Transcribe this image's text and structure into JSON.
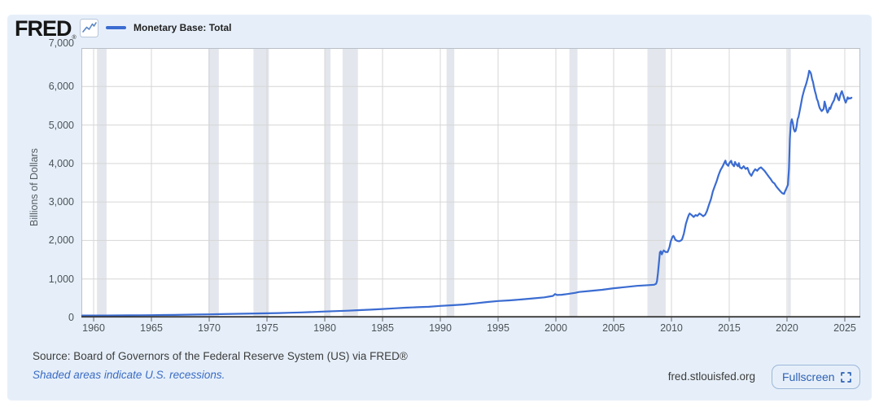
{
  "header": {
    "logo": "FRED",
    "logo_registered": "®",
    "legend": {
      "label": "Monetary Base: Total"
    }
  },
  "colors": {
    "series_blue": "#3b6cd1",
    "recession_band": "#e3e6ec",
    "grid": "#d6d6d6",
    "plot_border": "#b9bfc7",
    "axis_line": "#3a3a3a",
    "tick_color": "#666666",
    "widget_bg": "#e6eff9",
    "link_blue": "#3a6bc4",
    "button_blue": "#2e62b5"
  },
  "footer": {
    "source": "Source: Board of Governors of the Federal Reserve System (US) via FRED®",
    "note": "Shaded areas indicate U.S. recessions.",
    "site": "fred.stlouisfed.org",
    "fullscreen_label": "Fullscreen"
  },
  "chart_data": {
    "type": "line",
    "title": "Monetary Base: Total",
    "ylabel": "Billions of Dollars",
    "xlabel": "",
    "xlim": [
      1958.94,
      2026.34
    ],
    "ylim": [
      0,
      7000
    ],
    "grid": true,
    "legend_position": "top-left",
    "x_ticks": [
      {
        "value": 1960,
        "label": "1960"
      },
      {
        "value": 1965,
        "label": "1965"
      },
      {
        "value": 1970,
        "label": "1970"
      },
      {
        "value": 1975,
        "label": "1975"
      },
      {
        "value": 1980,
        "label": "1980"
      },
      {
        "value": 1985,
        "label": "1985"
      },
      {
        "value": 1990,
        "label": "1990"
      },
      {
        "value": 1995,
        "label": "1995"
      },
      {
        "value": 2000,
        "label": "2000"
      },
      {
        "value": 2005,
        "label": "2005"
      },
      {
        "value": 2010,
        "label": "2010"
      },
      {
        "value": 2015,
        "label": "2015"
      },
      {
        "value": 2020,
        "label": "2020"
      },
      {
        "value": 2025,
        "label": "2025"
      }
    ],
    "y_ticks": [
      {
        "value": 0,
        "label": "0"
      },
      {
        "value": 1000,
        "label": "1,000"
      },
      {
        "value": 2000,
        "label": "2,000"
      },
      {
        "value": 3000,
        "label": "3,000"
      },
      {
        "value": 4000,
        "label": "4,000"
      },
      {
        "value": 5000,
        "label": "5,000"
      },
      {
        "value": 6000,
        "label": "6,000"
      },
      {
        "value": 7000,
        "label": "7,000"
      }
    ],
    "recessions": [
      [
        1960.29,
        1961.12
      ],
      [
        1969.92,
        1970.83
      ],
      [
        1973.83,
        1975.17
      ],
      [
        1980.0,
        1980.5
      ],
      [
        1981.54,
        1982.87
      ],
      [
        1990.54,
        1991.21
      ],
      [
        2001.17,
        2001.87
      ],
      [
        2007.92,
        2009.5
      ],
      [
        2020.08,
        2020.33
      ]
    ],
    "series": [
      {
        "name": "Monetary Base: Total",
        "color": "#3b6cd1",
        "units": "Billions of Dollars",
        "points": [
          [
            1959.0,
            51
          ],
          [
            1960,
            50
          ],
          [
            1961,
            50
          ],
          [
            1962,
            52
          ],
          [
            1963,
            54
          ],
          [
            1964,
            57
          ],
          [
            1965,
            60
          ],
          [
            1966,
            63
          ],
          [
            1967,
            66
          ],
          [
            1968,
            71
          ],
          [
            1969,
            76
          ],
          [
            1970,
            81
          ],
          [
            1971,
            87
          ],
          [
            1972,
            92
          ],
          [
            1973,
            97
          ],
          [
            1974,
            103
          ],
          [
            1975,
            108
          ],
          [
            1976,
            115
          ],
          [
            1977,
            123
          ],
          [
            1978,
            132
          ],
          [
            1979,
            142
          ],
          [
            1980,
            155
          ],
          [
            1981,
            165
          ],
          [
            1982,
            175
          ],
          [
            1983,
            191
          ],
          [
            1984,
            204
          ],
          [
            1985,
            220
          ],
          [
            1986,
            237
          ],
          [
            1987,
            253
          ],
          [
            1988,
            267
          ],
          [
            1989,
            277
          ],
          [
            1990,
            300
          ],
          [
            1991,
            317
          ],
          [
            1992,
            337
          ],
          [
            1993,
            365
          ],
          [
            1994,
            400
          ],
          [
            1995,
            427
          ],
          [
            1996,
            445
          ],
          [
            1997,
            467
          ],
          [
            1998,
            495
          ],
          [
            1999,
            522
          ],
          [
            1999.75,
            560
          ],
          [
            1999.92,
            608
          ],
          [
            2000.1,
            584
          ],
          [
            2000.5,
            590
          ],
          [
            2001,
            610
          ],
          [
            2001.7,
            640
          ],
          [
            2002,
            662
          ],
          [
            2003,
            690
          ],
          [
            2004,
            720
          ],
          [
            2005,
            759
          ],
          [
            2006,
            788
          ],
          [
            2007,
            820
          ],
          [
            2008.0,
            840
          ],
          [
            2008.5,
            850
          ],
          [
            2008.67,
            875
          ],
          [
            2008.75,
            940
          ],
          [
            2008.83,
            1150
          ],
          [
            2008.92,
            1440
          ],
          [
            2009.0,
            1690
          ],
          [
            2009.08,
            1720
          ],
          [
            2009.17,
            1640
          ],
          [
            2009.25,
            1700
          ],
          [
            2009.33,
            1740
          ],
          [
            2009.5,
            1700
          ],
          [
            2009.67,
            1700
          ],
          [
            2009.83,
            1830
          ],
          [
            2009.92,
            1960
          ],
          [
            2010.08,
            2090
          ],
          [
            2010.17,
            2120
          ],
          [
            2010.25,
            2080
          ],
          [
            2010.33,
            2020
          ],
          [
            2010.5,
            1990
          ],
          [
            2010.67,
            1980
          ],
          [
            2010.83,
            2000
          ],
          [
            2010.92,
            2030
          ],
          [
            2011.08,
            2180
          ],
          [
            2011.25,
            2430
          ],
          [
            2011.42,
            2600
          ],
          [
            2011.5,
            2660
          ],
          [
            2011.58,
            2700
          ],
          [
            2011.75,
            2660
          ],
          [
            2011.92,
            2610
          ],
          [
            2012.08,
            2660
          ],
          [
            2012.25,
            2640
          ],
          [
            2012.42,
            2700
          ],
          [
            2012.58,
            2670
          ],
          [
            2012.75,
            2630
          ],
          [
            2012.92,
            2670
          ],
          [
            2013.08,
            2770
          ],
          [
            2013.25,
            2930
          ],
          [
            2013.42,
            3080
          ],
          [
            2013.58,
            3270
          ],
          [
            2013.75,
            3410
          ],
          [
            2013.92,
            3550
          ],
          [
            2014.08,
            3700
          ],
          [
            2014.25,
            3830
          ],
          [
            2014.42,
            3920
          ],
          [
            2014.58,
            4020
          ],
          [
            2014.67,
            4075
          ],
          [
            2014.75,
            3990
          ],
          [
            2014.92,
            3940
          ],
          [
            2015.0,
            4010
          ],
          [
            2015.17,
            4070
          ],
          [
            2015.25,
            3990
          ],
          [
            2015.42,
            3930
          ],
          [
            2015.5,
            4040
          ],
          [
            2015.58,
            3990
          ],
          [
            2015.75,
            3930
          ],
          [
            2015.83,
            4010
          ],
          [
            2015.92,
            3900
          ],
          [
            2016.08,
            3870
          ],
          [
            2016.25,
            3930
          ],
          [
            2016.42,
            3860
          ],
          [
            2016.58,
            3890
          ],
          [
            2016.75,
            3750
          ],
          [
            2016.92,
            3680
          ],
          [
            2017.08,
            3780
          ],
          [
            2017.25,
            3850
          ],
          [
            2017.42,
            3810
          ],
          [
            2017.58,
            3870
          ],
          [
            2017.75,
            3900
          ],
          [
            2017.92,
            3850
          ],
          [
            2018.08,
            3800
          ],
          [
            2018.25,
            3730
          ],
          [
            2018.42,
            3660
          ],
          [
            2018.58,
            3600
          ],
          [
            2018.75,
            3520
          ],
          [
            2018.92,
            3480
          ],
          [
            2019.08,
            3400
          ],
          [
            2019.25,
            3340
          ],
          [
            2019.42,
            3280
          ],
          [
            2019.58,
            3230
          ],
          [
            2019.75,
            3210
          ],
          [
            2019.83,
            3280
          ],
          [
            2019.92,
            3330
          ],
          [
            2020.08,
            3450
          ],
          [
            2020.17,
            3870
          ],
          [
            2020.25,
            4650
          ],
          [
            2020.33,
            5050
          ],
          [
            2020.42,
            5150
          ],
          [
            2020.5,
            5050
          ],
          [
            2020.58,
            4900
          ],
          [
            2020.67,
            4830
          ],
          [
            2020.75,
            4850
          ],
          [
            2020.83,
            4970
          ],
          [
            2020.92,
            5150
          ],
          [
            2021.0,
            5220
          ],
          [
            2021.17,
            5480
          ],
          [
            2021.33,
            5740
          ],
          [
            2021.5,
            5930
          ],
          [
            2021.67,
            6080
          ],
          [
            2021.83,
            6270
          ],
          [
            2021.92,
            6410
          ],
          [
            2022.0,
            6380
          ],
          [
            2022.08,
            6330
          ],
          [
            2022.17,
            6190
          ],
          [
            2022.25,
            6120
          ],
          [
            2022.33,
            5990
          ],
          [
            2022.42,
            5880
          ],
          [
            2022.5,
            5790
          ],
          [
            2022.58,
            5680
          ],
          [
            2022.67,
            5620
          ],
          [
            2022.75,
            5520
          ],
          [
            2022.83,
            5440
          ],
          [
            2022.92,
            5400
          ],
          [
            2023.0,
            5360
          ],
          [
            2023.17,
            5420
          ],
          [
            2023.25,
            5610
          ],
          [
            2023.33,
            5520
          ],
          [
            2023.42,
            5400
          ],
          [
            2023.5,
            5320
          ],
          [
            2023.58,
            5360
          ],
          [
            2023.67,
            5450
          ],
          [
            2023.75,
            5420
          ],
          [
            2023.83,
            5500
          ],
          [
            2023.92,
            5560
          ],
          [
            2024.08,
            5650
          ],
          [
            2024.17,
            5750
          ],
          [
            2024.25,
            5820
          ],
          [
            2024.33,
            5760
          ],
          [
            2024.42,
            5680
          ],
          [
            2024.5,
            5640
          ],
          [
            2024.58,
            5740
          ],
          [
            2024.67,
            5830
          ],
          [
            2024.75,
            5880
          ],
          [
            2024.83,
            5800
          ],
          [
            2024.92,
            5720
          ],
          [
            2025.0,
            5640
          ],
          [
            2025.08,
            5580
          ],
          [
            2025.17,
            5650
          ],
          [
            2025.25,
            5720
          ],
          [
            2025.33,
            5680
          ],
          [
            2025.42,
            5700
          ],
          [
            2025.5,
            5690
          ],
          [
            2025.58,
            5710
          ]
        ]
      }
    ],
    "note": "Shaded areas indicate U.S. recessions."
  }
}
